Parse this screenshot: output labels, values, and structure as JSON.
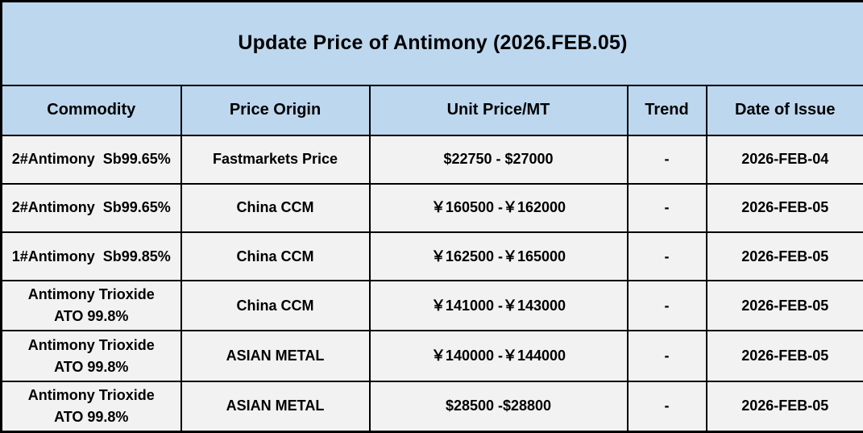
{
  "title": "Update Price of Antimony (2026.FEB.05)",
  "table": {
    "headers": [
      "Commodity",
      "Price Origin",
      "Unit Price/MT",
      "Trend",
      "Date of Issue"
    ],
    "rows": [
      {
        "commodity": "2#Antimony  Sb99.65%",
        "origin": "Fastmarkets Price",
        "price": "$22750 - $27000",
        "trend": "-",
        "date": "2026-FEB-04"
      },
      {
        "commodity": "2#Antimony  Sb99.65%",
        "origin": "China CCM",
        "price": "￥160500 -￥162000",
        "trend": "-",
        "date": "2026-FEB-05"
      },
      {
        "commodity": "1#Antimony  Sb99.85%",
        "origin": "China CCM",
        "price": "￥162500 -￥165000",
        "trend": "-",
        "date": "2026-FEB-05"
      },
      {
        "commodity": [
          "Antimony Trioxide",
          "ATO 99.8%"
        ],
        "origin": "China CCM",
        "price": "￥141000 -￥143000",
        "trend": "-",
        "date": "2026-FEB-05"
      },
      {
        "commodity": [
          "Antimony Trioxide",
          "ATO 99.8%"
        ],
        "origin": "ASIAN METAL",
        "price": "￥140000 -￥144000",
        "trend": "-",
        "date": "2026-FEB-05"
      },
      {
        "commodity": [
          "Antimony Trioxide",
          "ATO 99.8%"
        ],
        "origin": "ASIAN METAL",
        "price": "$28500 -$28800",
        "trend": "-",
        "date": "2026-FEB-05"
      }
    ]
  },
  "colors": {
    "header_bg": "#BDD7EE",
    "row_bg": "#F2F2F2",
    "border": "#000000",
    "text": "#000000"
  }
}
